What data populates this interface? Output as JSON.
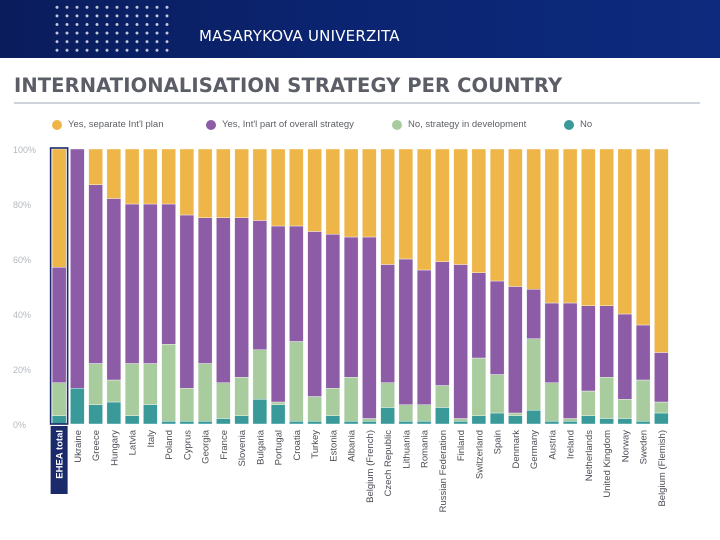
{
  "header": {
    "university_name": "MASARYKOVA UNIVERZITA"
  },
  "chart_data": {
    "type": "bar",
    "stacked": true,
    "title": "INTERNATIONALISATION STRATEGY PER COUNTRY",
    "xlabel": "",
    "ylabel": "",
    "ylim": [
      0,
      100
    ],
    "yticks": [
      "0%",
      "20%",
      "40%",
      "60%",
      "80%",
      "100%"
    ],
    "highlight_category": "EHEA total",
    "categories": [
      "EHEA total",
      "Ukraine",
      "Greece",
      "Hungary",
      "Latvia",
      "Italy",
      "Poland",
      "Cyprus",
      "Georgia",
      "France",
      "Slovenia",
      "Bulgaria",
      "Portugal",
      "Croatia",
      "Turkey",
      "Estonia",
      "Albania",
      "Belgium (French)",
      "Czech Republic",
      "Lithuania",
      "Romania",
      "Russian Federation",
      "Finland",
      "Switzerland",
      "Spain",
      "Denmark",
      "Germany",
      "Austria",
      "Ireland",
      "Netherlands",
      "United Kingdom",
      "Norway",
      "Sweden",
      "Belgium (Flemish)"
    ],
    "series": [
      {
        "name": "No",
        "color": "#3a9a9a",
        "values": [
          3,
          13,
          7,
          8,
          3,
          7,
          1,
          1,
          1,
          2,
          3,
          9,
          7,
          1,
          1,
          3,
          1,
          1,
          6,
          1,
          1,
          6,
          1,
          3,
          4,
          3,
          5,
          1,
          1,
          3,
          2,
          2,
          1,
          4
        ]
      },
      {
        "name": "No, strategy in development",
        "color": "#a8cc9e",
        "values": [
          12,
          0,
          15,
          8,
          19,
          15,
          28,
          12,
          21,
          13,
          14,
          18,
          1,
          29,
          9,
          10,
          16,
          1,
          9,
          6,
          6,
          8,
          1,
          21,
          14,
          1,
          26,
          14,
          1,
          9,
          15,
          7,
          15,
          4
        ]
      },
      {
        "name": "Yes, Int'l part of overall strategy",
        "color": "#8c5ca6",
        "values": [
          42,
          87,
          65,
          66,
          58,
          58,
          51,
          63,
          53,
          60,
          58,
          47,
          64,
          42,
          60,
          56,
          51,
          66,
          43,
          53,
          49,
          45,
          56,
          31,
          34,
          46,
          18,
          29,
          42,
          31,
          26,
          31,
          20,
          18
        ]
      },
      {
        "name": "Yes, separate Int'l plan",
        "color": "#eeb649",
        "values": [
          43,
          0,
          13,
          18,
          20,
          20,
          20,
          24,
          25,
          25,
          25,
          26,
          28,
          28,
          30,
          31,
          32,
          32,
          42,
          40,
          44,
          41,
          42,
          45,
          48,
          50,
          51,
          56,
          56,
          57,
          57,
          60,
          64,
          74
        ]
      }
    ]
  }
}
